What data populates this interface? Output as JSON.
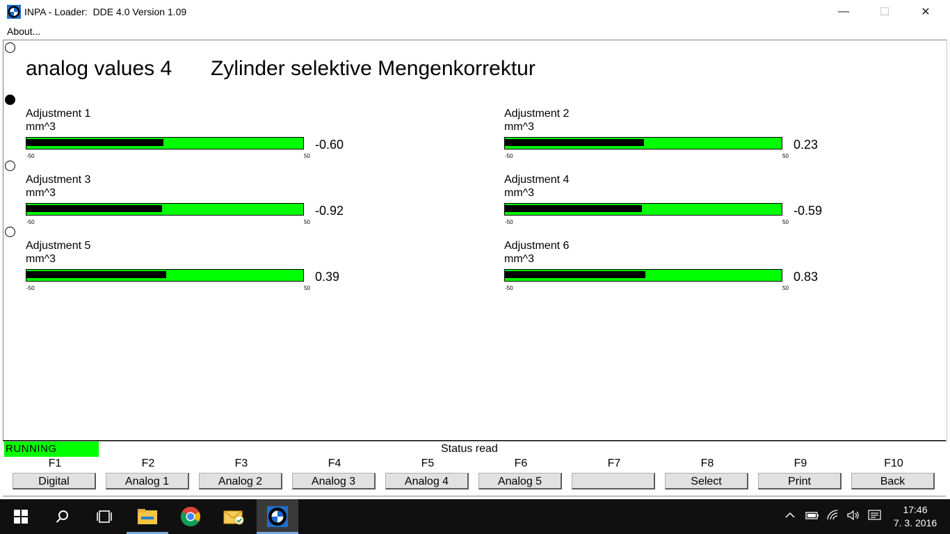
{
  "window": {
    "title": "INPA - Loader:  DDE 4.0 Version 1.09",
    "minimize_symbol": "—",
    "maximize_symbol": "☐",
    "close_symbol": "✕"
  },
  "menu": {
    "about": "About..."
  },
  "heading": {
    "left": "analog values 4",
    "right": "Zylinder selektive Mengenkorrektur"
  },
  "meters": [
    {
      "label": "Adjustment 1",
      "unit": "mm^3",
      "min": "-50",
      "max": "50",
      "value": "-0.60",
      "fill_fraction": 0.494
    },
    {
      "label": "Adjustment 2",
      "unit": "mm^3",
      "min": "-50",
      "max": "50",
      "value": "0.23",
      "fill_fraction": 0.502
    },
    {
      "label": "Adjustment 3",
      "unit": "mm^3",
      "min": "-50",
      "max": "50",
      "value": "-0.92",
      "fill_fraction": 0.491
    },
    {
      "label": "Adjustment 4",
      "unit": "mm^3",
      "min": "-50",
      "max": "50",
      "value": "-0.59",
      "fill_fraction": 0.494
    },
    {
      "label": "Adjustment 5",
      "unit": "mm^3",
      "min": "-50",
      "max": "50",
      "value": "0.39",
      "fill_fraction": 0.504
    },
    {
      "label": "Adjustment 6",
      "unit": "mm^3",
      "min": "-50",
      "max": "50",
      "value": "0.83",
      "fill_fraction": 0.508
    }
  ],
  "status": {
    "state": "RUNNING",
    "message": "Status read"
  },
  "fkeys": [
    {
      "key": "F1",
      "label": "Digital"
    },
    {
      "key": "F2",
      "label": "Analog 1"
    },
    {
      "key": "F3",
      "label": "Analog 2"
    },
    {
      "key": "F4",
      "label": "Analog 3"
    },
    {
      "key": "F5",
      "label": "Analog 4"
    },
    {
      "key": "F6",
      "label": "Analog 5"
    },
    {
      "key": "F7",
      "label": ""
    },
    {
      "key": "F8",
      "label": "Select"
    },
    {
      "key": "F9",
      "label": "Print"
    },
    {
      "key": "F10",
      "label": "Back"
    }
  ],
  "taskbar": {
    "items": [
      "windows-start-icon",
      "search-icon",
      "task-view-icon",
      "file-explorer-icon",
      "chrome-icon",
      "mail-icon",
      "inpa-bmw-icon"
    ],
    "clock_time": "17:46",
    "clock_date": "7. 3. 2016"
  },
  "colors": {
    "bar_green": "#00ff00",
    "running_green": "#00ff00",
    "taskbar": "#101010"
  }
}
